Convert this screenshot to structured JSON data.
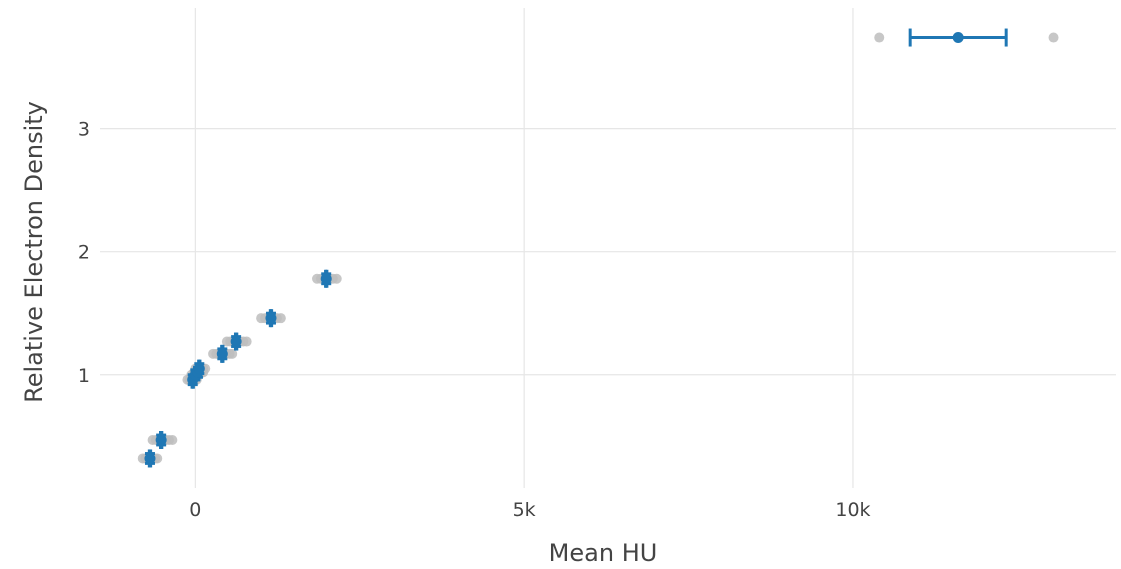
{
  "chart_data": {
    "type": "scatter",
    "xlabel": "Mean HU",
    "ylabel": "Relative Electron Density",
    "xlim": [
      -1450,
      14000
    ],
    "ylim": [
      0.08,
      3.98
    ],
    "x_ticks": [
      {
        "value": 0,
        "label": "0"
      },
      {
        "value": 5000,
        "label": "5k"
      },
      {
        "value": 10000,
        "label": "10k"
      }
    ],
    "y_ticks": [
      {
        "value": 1,
        "label": "1"
      },
      {
        "value": 2,
        "label": "2"
      },
      {
        "value": 3,
        "label": "3"
      }
    ],
    "grid": true,
    "colors": {
      "mean": "#1f77b4",
      "samples": "#bdbdbd"
    },
    "series": [
      {
        "points": [
          {
            "x": -690,
            "y": 0.32,
            "xerr": 10,
            "yerr": 0.04,
            "samples": [
              -800,
              -760,
              -720,
              -680,
              -650,
              -610,
              -580
            ]
          },
          {
            "x": -520,
            "y": 0.47,
            "xerr": 10,
            "yerr": 0.04,
            "samples": [
              -650,
              -600,
              -550,
              -500,
              -450,
              -400,
              -350
            ]
          },
          {
            "x": -40,
            "y": 0.96,
            "xerr": 10,
            "yerr": 0.04,
            "samples": [
              -120,
              -90,
              -60,
              -30,
              0,
              20
            ]
          },
          {
            "x": 0,
            "y": 1.0,
            "xerr": 10,
            "yerr": 0.04,
            "samples": [
              -60,
              -30,
              0,
              30,
              60
            ]
          },
          {
            "x": 40,
            "y": 1.02,
            "xerr": 10,
            "yerr": 0.04,
            "samples": [
              -20,
              10,
              40,
              70,
              100,
              120
            ]
          },
          {
            "x": 60,
            "y": 1.05,
            "xerr": 10,
            "yerr": 0.04,
            "samples": [
              0,
              40,
              80,
              120,
              150
            ]
          },
          {
            "x": 410,
            "y": 1.17,
            "xerr": 10,
            "yerr": 0.04,
            "samples": [
              270,
              320,
              370,
              420,
              470,
              520,
              560
            ]
          },
          {
            "x": 620,
            "y": 1.27,
            "xerr": 10,
            "yerr": 0.04,
            "samples": [
              480,
              530,
              580,
              630,
              680,
              730,
              780
            ]
          },
          {
            "x": 1150,
            "y": 1.46,
            "xerr": 10,
            "yerr": 0.04,
            "samples": [
              1000,
              1060,
              1120,
              1180,
              1240,
              1300
            ]
          },
          {
            "x": 1990,
            "y": 1.78,
            "xerr": 10,
            "yerr": 0.04,
            "samples": [
              1850,
              1910,
              1970,
              2030,
              2090,
              2150
            ]
          },
          {
            "x": 11600,
            "y": 3.74,
            "xerr": 730,
            "yerr": 0,
            "samples": [
              10400,
              13050
            ]
          }
        ]
      }
    ]
  }
}
